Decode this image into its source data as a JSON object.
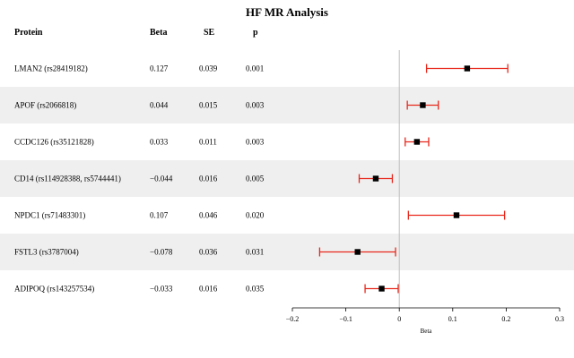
{
  "title": "HF MR Analysis",
  "headers": {
    "protein": "Protein",
    "beta": "Beta",
    "se": "SE",
    "p": "p"
  },
  "chart_data": {
    "type": "forest",
    "title": "HF MR Analysis",
    "xlabel": "Beta",
    "xlim": [
      -0.2,
      0.3
    ],
    "xticks": [
      -0.2,
      -0.1,
      0,
      0.1,
      0.2,
      0.3
    ],
    "xtick_labels": [
      "−0.2",
      "−0.1",
      "0",
      "0.1",
      "0.2",
      "0.3"
    ],
    "reference_line": 0,
    "rows": [
      {
        "protein": "LMAN2 (rs28419182)",
        "beta": 0.127,
        "beta_label": "0.127",
        "se_label": "0.039",
        "p_label": "0.001",
        "ci": [
          0.051,
          0.203
        ]
      },
      {
        "protein": "APOF (rs2066818)",
        "beta": 0.044,
        "beta_label": "0.044",
        "se_label": "0.015",
        "p_label": "0.003",
        "ci": [
          0.015,
          0.073
        ]
      },
      {
        "protein": "CCDC126 (rs35121828)",
        "beta": 0.033,
        "beta_label": "0.033",
        "se_label": "0.011",
        "p_label": "0.003",
        "ci": [
          0.011,
          0.055
        ]
      },
      {
        "protein": "CD14 (rs114928388, rs5744441)",
        "beta": -0.044,
        "beta_label": "−0.044",
        "se_label": "0.016",
        "p_label": "0.005",
        "ci": [
          -0.075,
          -0.013
        ]
      },
      {
        "protein": "NPDC1 (rs71483301)",
        "beta": 0.107,
        "beta_label": "0.107",
        "se_label": "0.046",
        "p_label": "0.020",
        "ci": [
          0.017,
          0.197
        ]
      },
      {
        "protein": "FSTL3 (rs3787004)",
        "beta": -0.078,
        "beta_label": "−0.078",
        "se_label": "0.036",
        "p_label": "0.031",
        "ci": [
          -0.149,
          -0.007
        ]
      },
      {
        "protein": "ADIPOQ (rs143257534)",
        "beta": -0.033,
        "beta_label": "−0.033",
        "se_label": "0.016",
        "p_label": "0.035",
        "ci": [
          -0.064,
          -0.002
        ]
      }
    ],
    "colors": {
      "stripe": "#efefef",
      "ci": "#e8271c",
      "point": "#000000",
      "zero_line": "#bdbdbd"
    }
  }
}
